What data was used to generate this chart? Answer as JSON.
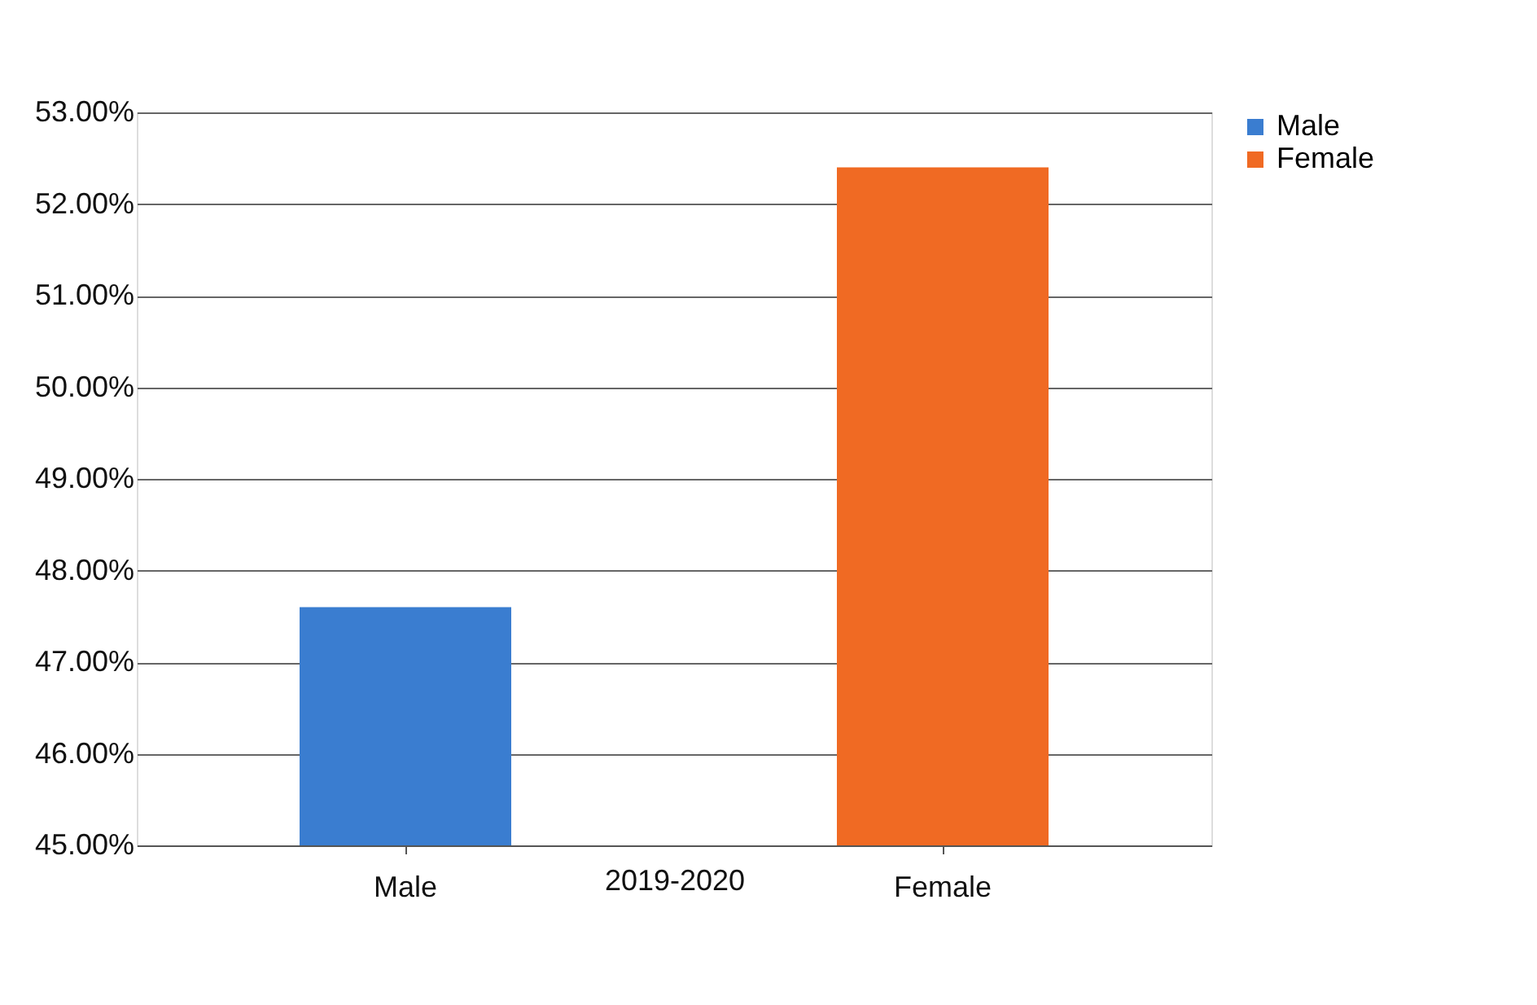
{
  "chart_data": {
    "type": "bar",
    "categories": [
      "Male",
      "Female"
    ],
    "xlabel": "2019-2020",
    "series": [
      {
        "name": "Male",
        "color": "#3a7dd0",
        "values": [
          47.6,
          null
        ]
      },
      {
        "name": "Female",
        "color": "#f06a23",
        "values": [
          null,
          52.4
        ]
      }
    ],
    "ylim": [
      45,
      53
    ],
    "yticks": [
      {
        "value": 45,
        "label": "45.00%"
      },
      {
        "value": 46,
        "label": "46.00%"
      },
      {
        "value": 47,
        "label": "47.00%"
      },
      {
        "value": 48,
        "label": "48.00%"
      },
      {
        "value": 49,
        "label": "49.00%"
      },
      {
        "value": 50,
        "label": "50.00%"
      },
      {
        "value": 51,
        "label": "51.00%"
      },
      {
        "value": 52,
        "label": "52.00%"
      },
      {
        "value": 53,
        "label": "53.00%"
      }
    ],
    "grid": "y",
    "legend": "right"
  }
}
